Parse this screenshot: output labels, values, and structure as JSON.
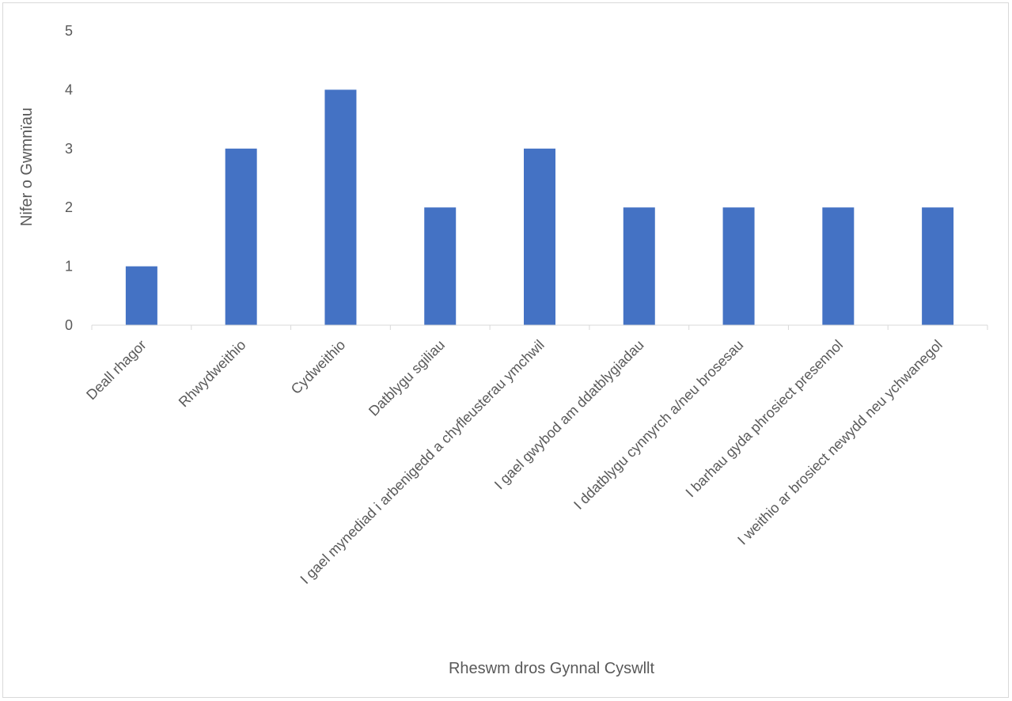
{
  "chart_data": {
    "type": "bar",
    "title": "",
    "xlabel": "Rheswm dros Gynnal Cyswllt",
    "ylabel": "Nifer o Gwmnïau",
    "categories": [
      "Deall rhagor",
      "Rhwydweithio",
      "Cydweithio",
      "Datblygu sgiliau",
      "I gael mynediad i arbenigedd a chyfleusterau ymchwil",
      "I gael gwybod am ddatblygiadau",
      "I ddatblygu cynnyrch a/neu brosesau",
      "I barhau gyda phrosiect presennol",
      "I weithio ar brosiect newydd neu ychwanegol"
    ],
    "values": [
      1,
      3,
      4,
      2,
      3,
      2,
      2,
      2,
      2
    ],
    "ylim": [
      0,
      5
    ],
    "yticks": [
      "0",
      "1",
      "2",
      "3",
      "4",
      "5"
    ],
    "grid": false,
    "legend": "none",
    "bar_color": "#4472c4",
    "axis_color": "#d9d9d9",
    "text_color": "#595959"
  }
}
